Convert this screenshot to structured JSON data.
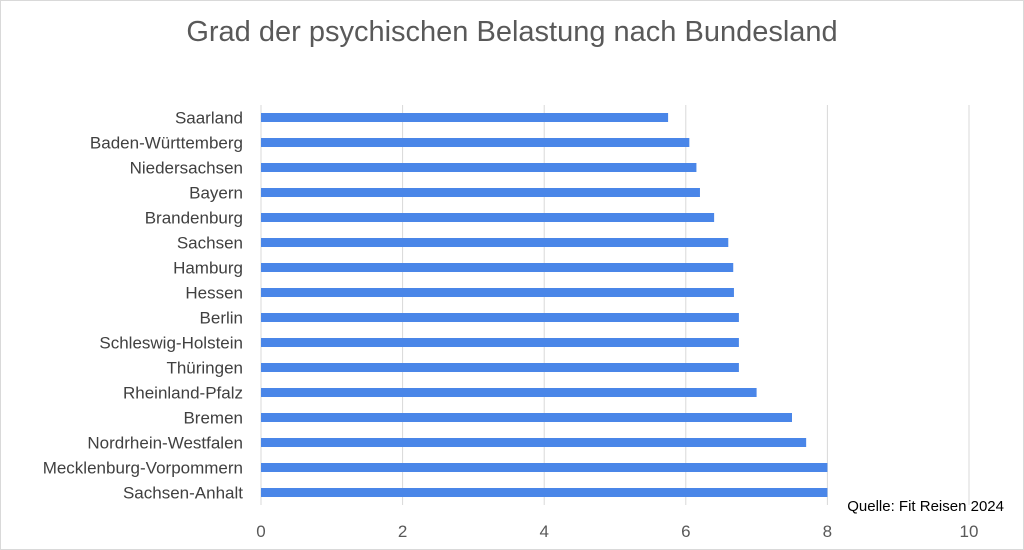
{
  "chart_data": {
    "type": "bar",
    "orientation": "horizontal",
    "title": "Grad der psychischen Belastung nach Bundesland",
    "categories": [
      "Saarland",
      "Baden-Württemberg",
      "Niedersachsen",
      "Bayern",
      "Brandenburg",
      "Sachsen",
      "Hamburg",
      "Hessen",
      "Berlin",
      "Schleswig-Holstein",
      "Thüringen",
      "Rheinland-Pfalz",
      "Bremen",
      "Nordrhein-Westfalen",
      "Mecklenburg-Vorpommern",
      "Sachsen-Anhalt"
    ],
    "values": [
      5.75,
      6.05,
      6.15,
      6.2,
      6.4,
      6.6,
      6.67,
      6.68,
      6.75,
      6.75,
      6.75,
      7.0,
      7.5,
      7.7,
      8.0,
      8.0
    ],
    "xlim": [
      0,
      10
    ],
    "xticks": [
      0,
      2,
      4,
      6,
      8,
      10
    ],
    "xlabel": "",
    "ylabel": "",
    "grid": "vertical",
    "legend": "none",
    "bar_color": "#4a86e8",
    "gridline_color": "#d9d9d9"
  },
  "source": "Quelle: Fit Reisen 2024"
}
